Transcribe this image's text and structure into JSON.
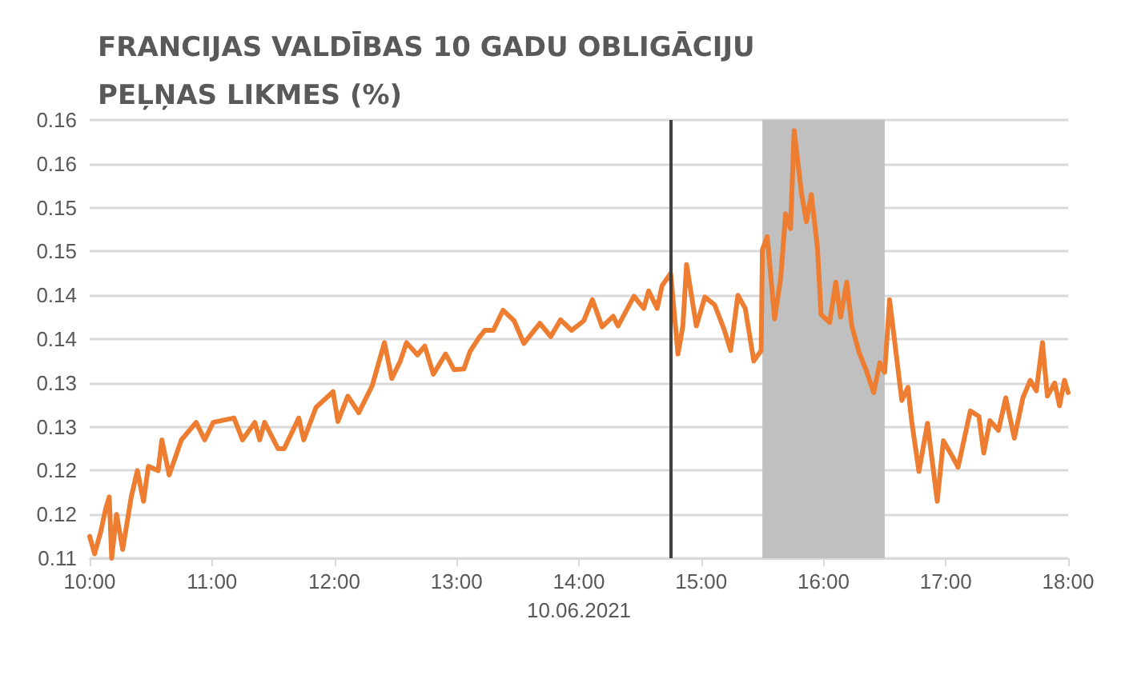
{
  "chart_data": {
    "type": "line",
    "title": "FRANCIJAS VALDĪBAS 10 GADU OBLIGĀCIJU\nPEĻŅAS LIKMES (%)",
    "xlabel": "10.06.2021",
    "x": [
      10.0,
      10.04,
      10.09,
      10.13,
      10.16,
      10.18,
      10.22,
      10.27,
      10.34,
      10.39,
      10.44,
      10.48,
      10.56,
      10.59,
      10.65,
      10.75,
      10.87,
      10.94,
      11.01,
      11.18,
      11.25,
      11.35,
      11.39,
      11.43,
      11.54,
      11.59,
      11.71,
      11.75,
      11.85,
      11.99,
      12.03,
      12.11,
      12.2,
      12.31,
      12.41,
      12.47,
      12.54,
      12.59,
      12.68,
      12.74,
      12.81,
      12.91,
      12.98,
      13.06,
      13.11,
      13.18,
      13.23,
      13.3,
      13.38,
      13.47,
      13.55,
      13.68,
      13.77,
      13.85,
      13.94,
      14.04,
      14.11,
      14.19,
      14.28,
      14.32,
      14.45,
      14.53,
      14.57,
      14.64,
      14.68,
      14.75,
      14.81,
      14.85,
      14.88,
      14.96,
      15.03,
      15.11,
      15.19,
      15.24,
      15.3,
      15.36,
      15.43,
      15.49,
      15.5,
      15.54,
      15.6,
      15.65,
      15.69,
      15.73,
      15.76,
      15.82,
      15.86,
      15.9,
      15.95,
      15.98,
      16.05,
      16.1,
      16.14,
      16.19,
      16.23,
      16.29,
      16.35,
      16.41,
      16.46,
      16.5,
      16.54,
      16.58,
      16.64,
      16.69,
      16.72,
      16.78,
      16.85,
      16.93,
      16.98,
      17.05,
      17.1,
      17.2,
      17.27,
      17.31,
      17.36,
      17.43,
      17.49,
      17.56,
      17.63,
      17.69,
      17.74,
      17.79,
      17.83,
      17.89,
      17.93,
      17.97,
      18.0
    ],
    "series": [
      {
        "color": "#ed7d31",
        "values": [
          0.1125,
          0.1105,
          0.113,
          0.1156,
          0.117,
          0.11,
          0.115,
          0.111,
          0.117,
          0.12,
          0.1165,
          0.1205,
          0.12,
          0.1235,
          0.1195,
          0.1235,
          0.1255,
          0.1235,
          0.1255,
          0.126,
          0.1235,
          0.1255,
          0.1235,
          0.1255,
          0.1225,
          0.1225,
          0.126,
          0.1235,
          0.1272,
          0.129,
          0.1256,
          0.1285,
          0.1266,
          0.1297,
          0.1346,
          0.1305,
          0.1325,
          0.1346,
          0.1332,
          0.1342,
          0.131,
          0.1333,
          0.1315,
          0.1316,
          0.1336,
          0.1351,
          0.136,
          0.136,
          0.1383,
          0.1371,
          0.1345,
          0.1368,
          0.1353,
          0.1372,
          0.136,
          0.1371,
          0.1395,
          0.1364,
          0.1376,
          0.1365,
          0.1399,
          0.1385,
          0.1405,
          0.1385,
          0.1411,
          0.1425,
          0.1333,
          0.1365,
          0.1435,
          0.1365,
          0.1398,
          0.1389,
          0.136,
          0.1337,
          0.14,
          0.1385,
          0.1325,
          0.1337,
          0.1452,
          0.1467,
          0.1373,
          0.142,
          0.1493,
          0.1476,
          0.1588,
          0.1516,
          0.1484,
          0.1515,
          0.1455,
          0.1378,
          0.1369,
          0.1415,
          0.1375,
          0.1415,
          0.1366,
          0.1335,
          0.1314,
          0.1289,
          0.1323,
          0.1312,
          0.1395,
          0.1349,
          0.128,
          0.1295,
          0.1257,
          0.1199,
          0.1254,
          0.1165,
          0.1234,
          0.1217,
          0.1204,
          0.1268,
          0.1262,
          0.122,
          0.1257,
          0.1246,
          0.1283,
          0.1237,
          0.1283,
          0.1303,
          0.1291,
          0.1346,
          0.1285,
          0.13,
          0.1274,
          0.1303,
          0.1289
        ]
      }
    ],
    "xlim": [
      10,
      18
    ],
    "xticks": [
      {
        "value": 10,
        "label": "10:00"
      },
      {
        "value": 11,
        "label": "11:00"
      },
      {
        "value": 12,
        "label": "12:00"
      },
      {
        "value": 13,
        "label": "13:00"
      },
      {
        "value": 14,
        "label": "14:00"
      },
      {
        "value": 15,
        "label": "15:00"
      },
      {
        "value": 16,
        "label": "16:00"
      },
      {
        "value": 17,
        "label": "17:00"
      },
      {
        "value": 18,
        "label": "18:00"
      }
    ],
    "ylim": [
      0.11,
      0.16
    ],
    "yticks": [
      {
        "value": 0.11,
        "label": "0.11"
      },
      {
        "value": 0.115,
        "label": "0.12"
      },
      {
        "value": 0.12,
        "label": "0.12"
      },
      {
        "value": 0.125,
        "label": "0.13"
      },
      {
        "value": 0.13,
        "label": "0.13"
      },
      {
        "value": 0.135,
        "label": "0.14"
      },
      {
        "value": 0.14,
        "label": "0.14"
      },
      {
        "value": 0.145,
        "label": "0.15"
      },
      {
        "value": 0.15,
        "label": "0.15"
      },
      {
        "value": 0.155,
        "label": "0.16"
      },
      {
        "value": 0.16,
        "label": "0.16"
      }
    ],
    "ref_lines": [
      {
        "axis": "x",
        "value": 14.75,
        "color": "#404040"
      }
    ],
    "bands": [
      {
        "axis": "x",
        "from": 15.5,
        "to": 16.5,
        "color": "#c0c0c0"
      }
    ],
    "grid": "y",
    "marker": "none",
    "line_style": "solid"
  }
}
